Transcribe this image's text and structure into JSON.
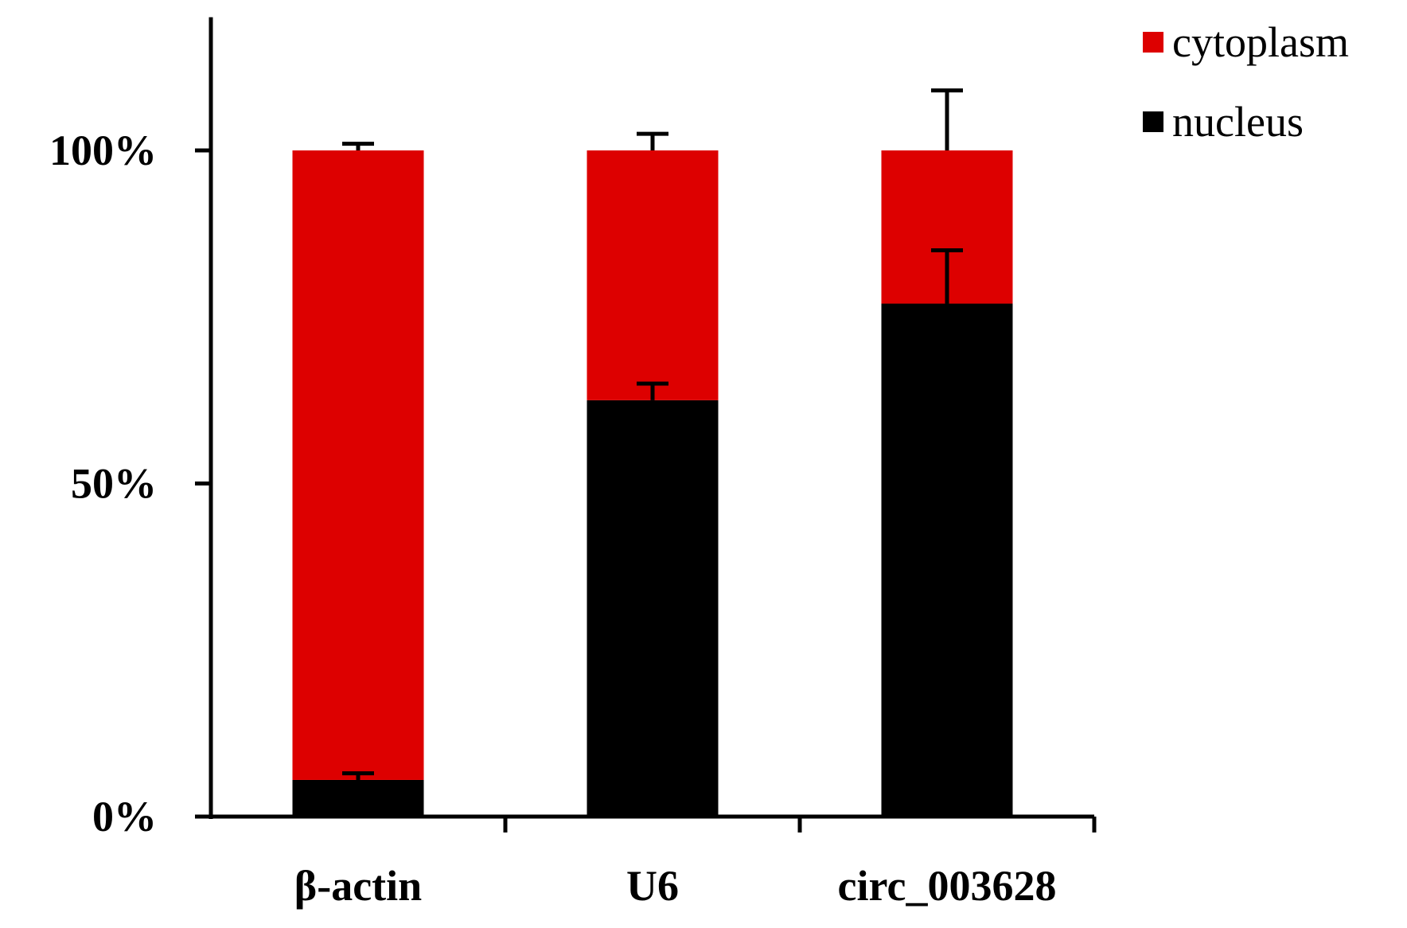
{
  "chart_data": {
    "type": "bar",
    "stacked": true,
    "categories": [
      "β-actin",
      "U6",
      "circ_003628"
    ],
    "series": [
      {
        "name": "nucleus",
        "color": "#000000",
        "values": [
          5.5,
          62.5,
          77
        ],
        "error": [
          1,
          2.5,
          8
        ]
      },
      {
        "name": "cytoplasm",
        "color": "#dd0000",
        "values": [
          94.5,
          37.5,
          23
        ],
        "error": [
          1,
          2.5,
          9
        ]
      }
    ],
    "ylim": [
      0,
      120
    ],
    "yticks": [
      {
        "value": 0,
        "label": "0%"
      },
      {
        "value": 50,
        "label": "50%"
      },
      {
        "value": 100,
        "label": "100%"
      }
    ],
    "legend": {
      "placement": "top-right",
      "entries": [
        "cytoplasm",
        "nucleus"
      ]
    },
    "grid": false,
    "title": "",
    "xlabel": "",
    "ylabel": ""
  }
}
